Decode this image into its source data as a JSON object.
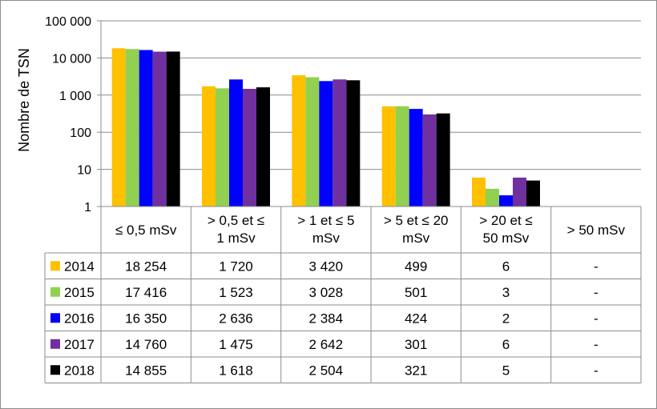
{
  "chart_data": {
    "type": "bar",
    "ylabel": "Nombre de TSN",
    "yscale": "log",
    "ylim": [
      1,
      100000
    ],
    "ytick_labels": [
      "1",
      "10",
      "100",
      "1 000",
      "10 000",
      "100 000"
    ],
    "grid": true,
    "categories": [
      [
        "≤ 0,5 mSv"
      ],
      [
        "> 0,5 et ≤",
        "1 mSv"
      ],
      [
        "> 1 et ≤ 5",
        "mSv"
      ],
      [
        "> 5 et ≤ 20",
        "mSv"
      ],
      [
        "> 20 et ≤",
        "50 mSv"
      ],
      [
        "> 50 mSv"
      ]
    ],
    "series": [
      {
        "name": "2014",
        "color": "#FFC000",
        "values": [
          18254,
          1720,
          3420,
          499,
          6,
          null
        ],
        "labels": [
          "18 254",
          "1 720",
          "3 420",
          "499",
          "6",
          "-"
        ]
      },
      {
        "name": "2015",
        "color": "#92D050",
        "values": [
          17416,
          1523,
          3028,
          501,
          3,
          null
        ],
        "labels": [
          "17 416",
          "1 523",
          "3 028",
          "501",
          "3",
          "-"
        ]
      },
      {
        "name": "2016",
        "color": "#0000FF",
        "values": [
          16350,
          2636,
          2384,
          424,
          2,
          null
        ],
        "labels": [
          "16 350",
          "2 636",
          "2 384",
          "424",
          "2",
          "-"
        ]
      },
      {
        "name": "2017",
        "color": "#7030A0",
        "values": [
          14760,
          1475,
          2642,
          301,
          6,
          null
        ],
        "labels": [
          "14 760",
          "1 475",
          "2 642",
          "301",
          "6",
          "-"
        ]
      },
      {
        "name": "2018",
        "color": "#000000",
        "values": [
          14855,
          1618,
          2504,
          321,
          5,
          null
        ],
        "labels": [
          "14 855",
          "1 618",
          "2 504",
          "321",
          "5",
          "-"
        ]
      }
    ]
  }
}
